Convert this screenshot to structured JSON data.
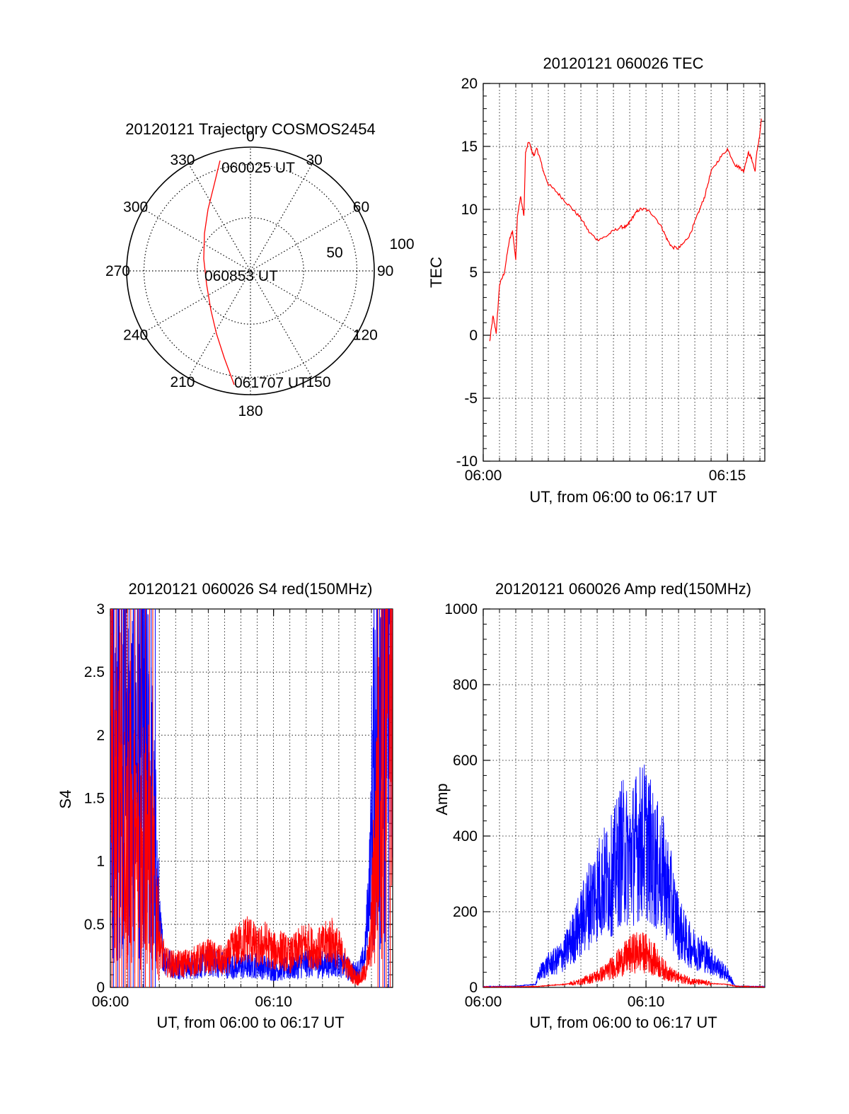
{
  "colors": {
    "red": "#ff0000",
    "blue": "#0000ff",
    "axis": "#000000",
    "grid": "#000000",
    "background": "#ffffff"
  },
  "chart_data": [
    {
      "id": "polar",
      "type": "scatter",
      "title": "20120121 Trajectory COSMOS2454",
      "azimuth_labels": [
        "0",
        "30",
        "60",
        "90",
        "120",
        "150",
        "180",
        "210",
        "240",
        "270",
        "300",
        "330"
      ],
      "ring_labels": [
        "50",
        "100"
      ],
      "r_max": 100,
      "grid": true,
      "annotations": [
        {
          "text": "060025 UT",
          "az": 355,
          "el": 84
        },
        {
          "text": "060853 UT",
          "az": 270,
          "el": 17
        },
        {
          "text": "061707 UT",
          "az": 189,
          "el": 90
        }
      ],
      "series": [
        {
          "color": "red",
          "az_el": [
            [
              340,
              87
            ],
            [
              325,
              76
            ],
            [
              312,
              65
            ],
            [
              295,
              52
            ],
            [
              285,
              44
            ],
            [
              270,
              38
            ],
            [
              258,
              42
            ],
            [
              244,
              50
            ],
            [
              228,
              63
            ],
            [
              215,
              78
            ],
            [
              204,
              92
            ]
          ]
        }
      ]
    },
    {
      "id": "tec",
      "type": "line",
      "title": "20120121 060026 TEC",
      "xlabel": "UT, from 06:00 to 06:17 UT",
      "ylabel": "TEC",
      "xlim": [
        0,
        17.3
      ],
      "ylim": [
        -10,
        20
      ],
      "x_unit": "minutes after 06:00 UT",
      "x_ticks": [
        0,
        15
      ],
      "x_tick_labels": [
        "06:00",
        "06:15"
      ],
      "y_ticks": [
        -10,
        -5,
        0,
        5,
        10,
        15,
        20
      ],
      "y_tick_labels": [
        "-10",
        "-5",
        "0",
        "5",
        "10",
        "15",
        "20"
      ],
      "grid": true,
      "series": [
        {
          "color": "red",
          "x": [
            0.4,
            0.6,
            0.8,
            1.0,
            1.3,
            1.6,
            1.8,
            2.0,
            2.1,
            2.3,
            2.5,
            2.6,
            2.8,
            3.0,
            3.1,
            3.3,
            3.5,
            3.7,
            4.0,
            4.5,
            5.0,
            5.5,
            6.0,
            6.5,
            7.0,
            7.5,
            8.0,
            8.5,
            8.8,
            9.0,
            9.3,
            9.6,
            10.0,
            10.5,
            11.0,
            11.3,
            11.6,
            12.0,
            12.3,
            12.7,
            13.0,
            13.3,
            13.6,
            14.0,
            14.5,
            15.0,
            15.5,
            15.8,
            16.0,
            16.1,
            16.3,
            16.5,
            16.7,
            16.8,
            16.95,
            17.1
          ],
          "y": [
            -0.5,
            1.5,
            0.2,
            4.0,
            5.0,
            7.5,
            8.3,
            6.0,
            9.5,
            11.0,
            9.5,
            14.5,
            15.4,
            14.6,
            14.3,
            14.8,
            14.0,
            13.0,
            12.0,
            11.4,
            10.7,
            10.0,
            9.3,
            8.2,
            7.6,
            7.8,
            8.3,
            8.6,
            8.6,
            9.0,
            9.6,
            10.0,
            10.0,
            9.5,
            8.5,
            7.6,
            7.0,
            6.9,
            7.3,
            8.0,
            9.0,
            10.0,
            11.0,
            13.0,
            14.0,
            14.8,
            13.5,
            13.3,
            13.0,
            13.6,
            14.5,
            14.0,
            13.0,
            14.5,
            15.5,
            17.2
          ]
        }
      ]
    },
    {
      "id": "s4",
      "type": "line",
      "title": "20120121 060026 S4 red(150MHz)",
      "xlabel": "UT, from 06:00 to 06:17 UT",
      "ylabel": "S4",
      "xlim": [
        0,
        17.3
      ],
      "ylim": [
        0,
        3
      ],
      "x_unit": "minutes after 06:00 UT",
      "x_ticks": [
        0,
        10
      ],
      "x_tick_labels": [
        "06:00",
        "06:10"
      ],
      "y_ticks": [
        0,
        0.5,
        1,
        1.5,
        2,
        2.5,
        3
      ],
      "y_tick_labels": [
        "0",
        "0.5",
        "1",
        "1.5",
        "2",
        "2.5",
        "3"
      ],
      "grid": true,
      "series": [
        {
          "color": "blue",
          "x": [
            0.0,
            0.4,
            0.8,
            1.2,
            1.6,
            2.0,
            2.3,
            2.6,
            2.8,
            3.0,
            3.3,
            4.0,
            5.0,
            6.0,
            7.0,
            8.0,
            9.0,
            10.0,
            11.0,
            12.0,
            13.0,
            14.0,
            14.6,
            15.0,
            15.3,
            15.6,
            15.9,
            16.2,
            16.6,
            17.0,
            17.3
          ],
          "y": [
            2.2,
            1.8,
            2.4,
            1.5,
            2.0,
            1.9,
            1.7,
            1.3,
            0.9,
            0.5,
            0.22,
            0.17,
            0.16,
            0.2,
            0.18,
            0.16,
            0.18,
            0.14,
            0.15,
            0.19,
            0.18,
            0.2,
            0.14,
            0.12,
            0.15,
            0.25,
            0.9,
            2.0,
            2.6,
            2.8,
            2.9
          ]
        },
        {
          "color": "red",
          "x": [
            0.0,
            0.3,
            0.6,
            0.9,
            1.2,
            1.6,
            2.0,
            2.4,
            2.7,
            2.9,
            3.1,
            3.4,
            4.0,
            5.0,
            6.0,
            7.0,
            7.5,
            8.0,
            8.5,
            9.0,
            9.5,
            10.0,
            10.5,
            11.0,
            11.5,
            12.0,
            12.5,
            13.0,
            13.5,
            14.0,
            14.6,
            15.0,
            15.3,
            15.6,
            15.9,
            16.2,
            16.5,
            16.8,
            17.1
          ],
          "y": [
            2.5,
            1.2,
            2.0,
            0.8,
            1.4,
            1.0,
            1.2,
            1.1,
            0.8,
            0.5,
            0.3,
            0.2,
            0.18,
            0.2,
            0.25,
            0.2,
            0.3,
            0.35,
            0.4,
            0.3,
            0.35,
            0.28,
            0.3,
            0.25,
            0.3,
            0.35,
            0.3,
            0.32,
            0.38,
            0.3,
            0.15,
            0.08,
            0.07,
            0.12,
            0.3,
            0.9,
            1.8,
            2.4,
            2.9
          ]
        }
      ]
    },
    {
      "id": "amp",
      "type": "line",
      "title": "20120121 060026 Amp red(150MHz)",
      "xlabel": "UT, from 06:00 to 06:17 UT",
      "ylabel": "Amp",
      "xlim": [
        0,
        17.3
      ],
      "ylim": [
        0,
        1000
      ],
      "x_unit": "minutes after 06:00 UT",
      "x_ticks": [
        0,
        10
      ],
      "x_tick_labels": [
        "06:00",
        "06:10"
      ],
      "y_ticks": [
        0,
        200,
        400,
        600,
        800,
        1000
      ],
      "y_tick_labels": [
        "0",
        "200",
        "400",
        "600",
        "800",
        "1000"
      ],
      "grid": true,
      "series": [
        {
          "color": "blue",
          "x": [
            0.0,
            2.0,
            3.2,
            3.5,
            4.0,
            4.5,
            5.0,
            5.5,
            6.0,
            6.5,
            7.0,
            7.5,
            8.0,
            8.5,
            9.0,
            9.5,
            10.0,
            10.5,
            11.0,
            11.5,
            12.0,
            12.5,
            13.0,
            13.5,
            14.0,
            14.5,
            15.0,
            15.3,
            15.5,
            17.3
          ],
          "y": [
            2,
            3,
            8,
            40,
            60,
            70,
            90,
            130,
            170,
            220,
            260,
            280,
            300,
            360,
            340,
            380,
            390,
            330,
            300,
            240,
            160,
            120,
            100,
            90,
            70,
            50,
            35,
            15,
            3,
            2
          ]
        },
        {
          "color": "red",
          "x": [
            0.0,
            3.2,
            4.0,
            5.0,
            6.0,
            7.0,
            7.5,
            8.0,
            8.5,
            9.0,
            9.5,
            10.0,
            10.5,
            11.0,
            11.5,
            12.0,
            13.0,
            14.0,
            15.0,
            15.5,
            17.3
          ],
          "y": [
            1,
            2,
            5,
            8,
            15,
            30,
            40,
            55,
            70,
            85,
            95,
            90,
            75,
            50,
            35,
            25,
            15,
            10,
            8,
            3,
            1
          ]
        }
      ]
    }
  ]
}
